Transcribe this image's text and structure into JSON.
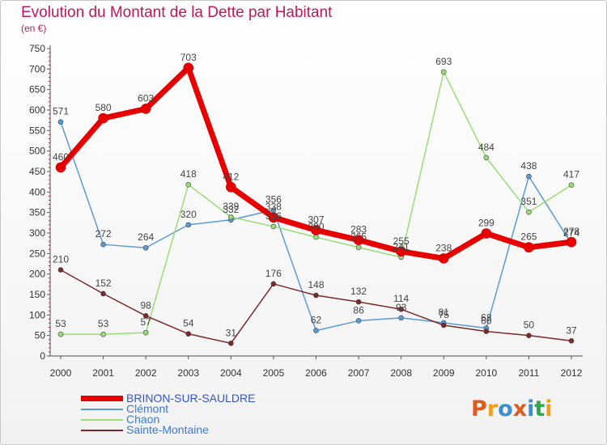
{
  "title": "Evolution du Montant de la Dette par Habitant",
  "subtitle": "(en €)",
  "logo": {
    "text": "Proxiti",
    "colors": [
      "#e05a1b",
      "#f0a020",
      "#3a8fd0",
      "#e05a1b",
      "#3a8fd0",
      "#2aa84a",
      "#f0a020"
    ]
  },
  "chart_data": {
    "type": "line",
    "x": [
      "2000",
      "2001",
      "2002",
      "2003",
      "2004",
      "2005",
      "2006",
      "2007",
      "2008",
      "2009",
      "2010",
      "2011",
      "2012"
    ],
    "ylim": [
      0,
      750
    ],
    "yticks": [
      0,
      50,
      100,
      150,
      200,
      250,
      300,
      350,
      400,
      450,
      500,
      550,
      600,
      650,
      700,
      750
    ],
    "grid": false,
    "legend_position": "bottom-left",
    "series": [
      {
        "name": "BRINON-SUR-SAULDRE",
        "color": "#e60000",
        "line_width": 7,
        "marker_radius": 6,
        "values": [
          460,
          580,
          603,
          703,
          412,
          338,
          307,
          283,
          255,
          238,
          299,
          265,
          278
        ],
        "labels": [
          "460",
          "580",
          "603",
          "703",
          "412",
          "338",
          "307",
          "283",
          "255",
          "238",
          "299",
          "265",
          "278"
        ]
      },
      {
        "name": "Clémont",
        "color": "#5b9bd5",
        "line_width": 1.5,
        "marker_radius": 3,
        "values": [
          571,
          272,
          264,
          320,
          332,
          356,
          62,
          86,
          93,
          81,
          68,
          438,
          274
        ],
        "labels": [
          "571",
          "272",
          "264",
          "320",
          "332",
          "356",
          "62",
          "86",
          "93",
          "81",
          "68",
          "438",
          "274"
        ]
      },
      {
        "name": "Chaon",
        "color": "#99dd77",
        "line_width": 1.5,
        "marker_radius": 3,
        "values": [
          53,
          53,
          57,
          418,
          339,
          316,
          290,
          265,
          241,
          693,
          484,
          351,
          417
        ],
        "labels": [
          "53",
          "53",
          "57",
          "418",
          "339",
          "316",
          "290",
          "265",
          "241",
          "693",
          "484",
          "351",
          "417"
        ]
      },
      {
        "name": "Sainte-Montaine",
        "color": "#7a2a2a",
        "line_width": 1.5,
        "marker_radius": 3,
        "values": [
          210,
          152,
          98,
          54,
          31,
          176,
          148,
          132,
          114,
          75,
          60,
          50,
          37
        ],
        "labels": [
          "210",
          "152",
          "98",
          "54",
          "31",
          "176",
          "148",
          "132",
          "114",
          "75",
          "60",
          "50",
          "37"
        ]
      }
    ]
  }
}
